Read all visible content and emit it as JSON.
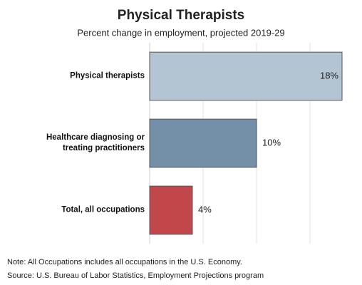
{
  "chart_data": {
    "type": "hbar",
    "title": "Physical Therapists",
    "subtitle": "Percent change in employment, projected 2019-29",
    "categories": [
      "Physical therapists",
      "Healthcare diagnosing or treating practitioners",
      "Total, all occupations"
    ],
    "values": [
      18,
      10,
      4
    ],
    "value_labels": [
      "18%",
      "10%",
      "4%"
    ],
    "colors": [
      "#b3c4d3",
      "#7490a9",
      "#c1474a"
    ],
    "xlim": [
      0,
      19
    ],
    "xticks": [
      0,
      5,
      10,
      15
    ],
    "grid": true,
    "notes": [
      "Note: All Occupations includes all occupations in the U.S. Economy.",
      "Source: U.S. Bureau of Labor Statistics, Employment Projections program"
    ]
  }
}
